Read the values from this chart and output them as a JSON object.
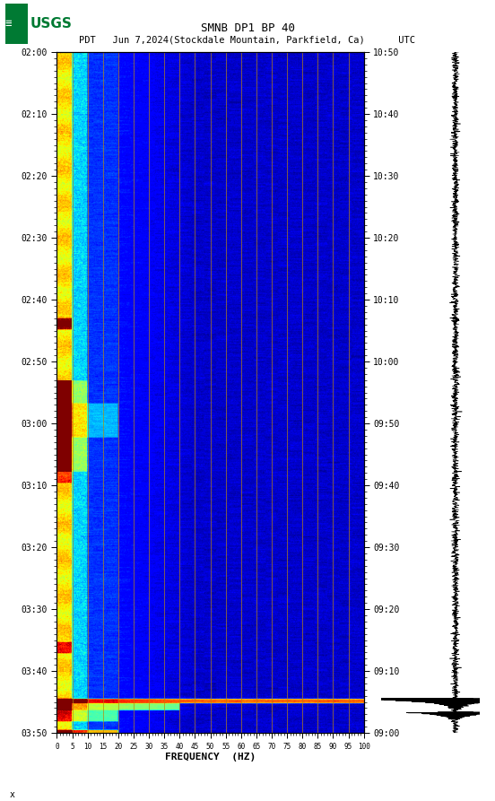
{
  "title_line1": "SMNB DP1 BP 40",
  "title_line2_left": "PDT   Jun 7,2024(Stockdale Mountain, Parkfield, Ca)",
  "title_line2_right": "UTC",
  "xlabel": "FREQUENCY  (HZ)",
  "freq_ticks": [
    0,
    5,
    10,
    15,
    20,
    25,
    30,
    35,
    40,
    45,
    50,
    55,
    60,
    65,
    70,
    75,
    80,
    85,
    90,
    95,
    100
  ],
  "time_ticks_left": [
    "02:00",
    "02:10",
    "02:20",
    "02:30",
    "02:40",
    "02:50",
    "03:00",
    "03:10",
    "03:20",
    "03:30",
    "03:40",
    "03:50"
  ],
  "time_ticks_right": [
    "09:00",
    "09:10",
    "09:20",
    "09:30",
    "09:40",
    "09:50",
    "10:00",
    "10:10",
    "10:20",
    "10:30",
    "10:40",
    "10:50"
  ],
  "freq_gridlines": [
    5,
    10,
    15,
    20,
    25,
    30,
    35,
    40,
    45,
    50,
    55,
    60,
    65,
    70,
    75,
    80,
    85,
    90,
    95,
    100
  ],
  "bg_color": "white",
  "usgs_color": "#007A33",
  "n_time": 1200,
  "n_freq": 500,
  "seed": 42
}
